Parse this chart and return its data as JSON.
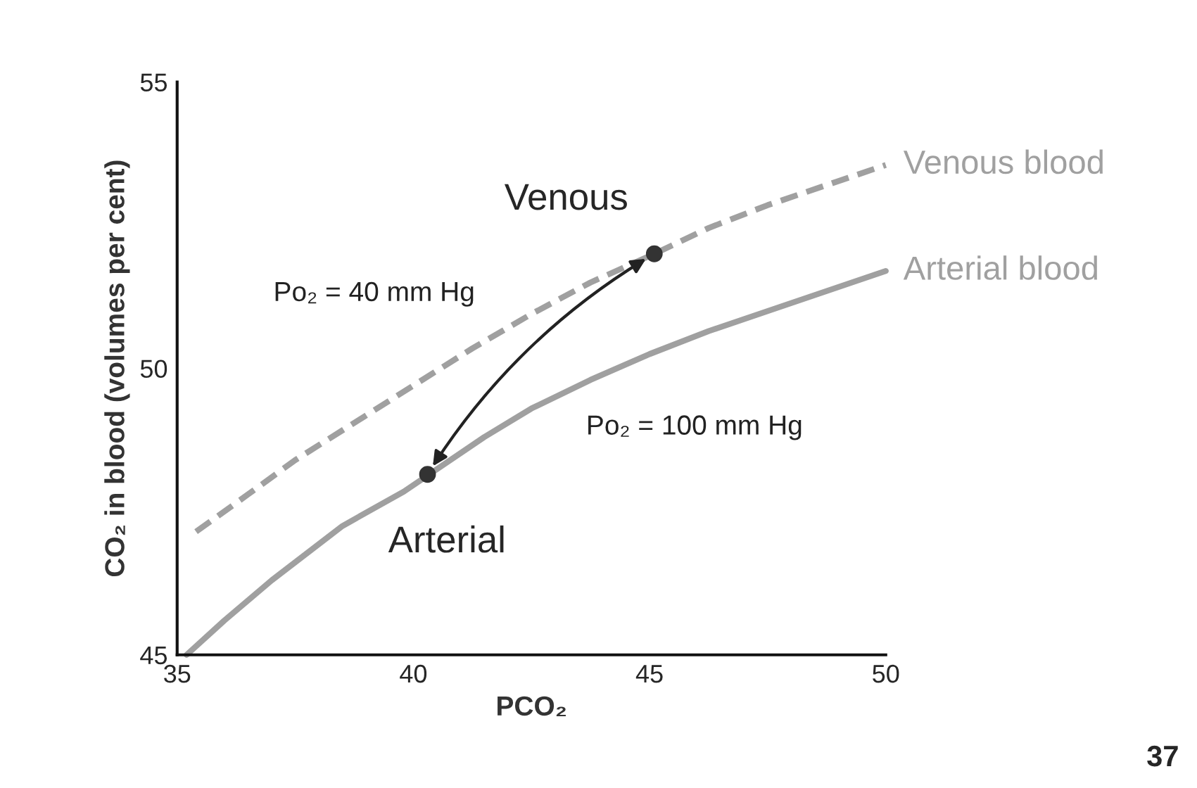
{
  "chart_data": {
    "type": "line",
    "xlabel": "PCO₂",
    "ylabel": "CO₂ in blood (volumes per cent)",
    "xlim": [
      35,
      50
    ],
    "ylim": [
      45,
      55
    ],
    "xticks": [
      35,
      40,
      45,
      50
    ],
    "yticks": [
      45,
      50,
      55
    ],
    "grid": false,
    "marker": "none",
    "series": [
      {
        "name": "Venous blood",
        "color": "#a0a0a0",
        "line_style": "dashed",
        "x": [
          35.4,
          36.5,
          37.5,
          38.75,
          40,
          41.25,
          42.5,
          43.75,
          45.1,
          46.25,
          47.5,
          48.75,
          50
        ],
        "values": [
          47.15,
          47.8,
          48.4,
          49.05,
          49.7,
          50.35,
          50.95,
          51.5,
          52.0,
          52.45,
          52.85,
          53.2,
          53.55
        ]
      },
      {
        "name": "Arterial blood",
        "color": "#a0a0a0",
        "line_style": "solid",
        "x": [
          35.2,
          36,
          37,
          38.5,
          39.8,
          41.5,
          42.5,
          43.75,
          45,
          46.25,
          47.5,
          48.75,
          50
        ],
        "values": [
          45.0,
          45.6,
          46.3,
          47.25,
          47.85,
          48.8,
          49.3,
          49.8,
          50.25,
          50.65,
          51.0,
          51.35,
          51.7
        ]
      },
      {
        "type": "scatter",
        "color": "#333333",
        "marker": "circle",
        "x": [
          40.3,
          45.1
        ],
        "values": [
          48.15,
          52.0
        ]
      }
    ],
    "annotations": [
      {
        "text": "Venous",
        "x": 45.1,
        "y": 52.0
      },
      {
        "text": "Arterial",
        "x": 40.3,
        "y": 48.15
      },
      "Po₂ = 40 mm Hg",
      "Po₂ = 100 mm Hg",
      "37"
    ]
  }
}
